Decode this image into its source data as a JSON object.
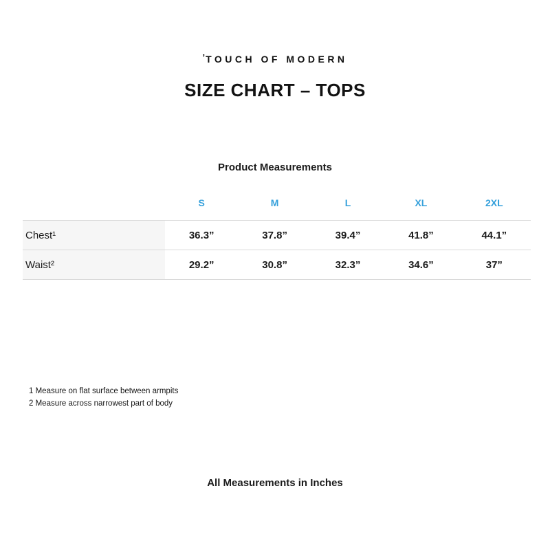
{
  "brand": {
    "mark": "’",
    "name": "TOUCH OF MODERN"
  },
  "title": "SIZE CHART – TOPS",
  "table": {
    "caption": "Product Measurements",
    "header_color": "#35a0db",
    "columns": [
      "S",
      "M",
      "L",
      "XL",
      "2XL"
    ],
    "rows": [
      {
        "label": "Chest¹",
        "values": [
          "36.3”",
          "37.8”",
          "39.4”",
          "41.8”",
          "44.1”"
        ]
      },
      {
        "label": "Waist²",
        "values": [
          "29.2”",
          "30.8”",
          "32.3”",
          "34.6”",
          "37”"
        ]
      }
    ]
  },
  "footnotes": [
    "1 Measure on flat surface between armpits",
    "2 Measure across narrowest part of body"
  ],
  "bottom_note": "All Measurements in Inches"
}
